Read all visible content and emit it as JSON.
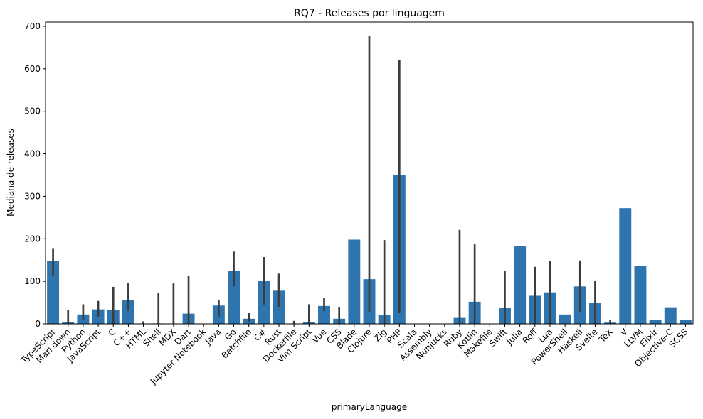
{
  "chart_data": {
    "type": "bar",
    "title": "RQ7 - Releases por linguagem",
    "xlabel": "primaryLanguage",
    "ylabel": "Mediana de releases",
    "ylim": [
      0,
      710
    ],
    "yticks": [
      0,
      100,
      200,
      300,
      400,
      500,
      600,
      700
    ],
    "grid": false,
    "legend": "none",
    "bar_color": "#2e75b0",
    "errorbar_color": "#3d3d3d",
    "categories": [
      "TypeScript",
      "Markdown",
      "Python",
      "JavaScript",
      "C",
      "C++",
      "HTML",
      "Shell",
      "MDX",
      "Dart",
      "Jupyter Notebook",
      "Java",
      "Go",
      "Batchfile",
      "C#",
      "Rust",
      "Dockerfile",
      "Vim Script",
      "Vue",
      "CSS",
      "Blade",
      "Clojure",
      "Zig",
      "PHP",
      "Scala",
      "Assembly",
      "Nunjucks",
      "Ruby",
      "Kotlin",
      "Makefile",
      "Swift",
      "Julia",
      "Roff",
      "Lua",
      "PowerShell",
      "Haskell",
      "Svelte",
      "TeX",
      "V",
      "LLVM",
      "Elixir",
      "Objective-C",
      "SCSS"
    ],
    "values": [
      147,
      5,
      22,
      34,
      33,
      56,
      0,
      1,
      0,
      24,
      0,
      43,
      125,
      12,
      101,
      78,
      0,
      4,
      42,
      12,
      198,
      105,
      21,
      350,
      0,
      0,
      0,
      14,
      52,
      0,
      37,
      182,
      66,
      74,
      22,
      88,
      49,
      3,
      272,
      137,
      10,
      39,
      10
    ],
    "error_low": [
      112,
      0,
      8,
      17,
      0,
      30,
      0,
      0,
      0,
      0,
      0,
      17,
      88,
      5,
      44,
      40,
      0,
      0,
      30,
      0,
      null,
      28,
      0,
      25,
      null,
      null,
      null,
      0,
      0,
      null,
      0,
      null,
      0,
      0,
      null,
      28,
      0,
      0,
      null,
      null,
      null,
      null,
      null
    ],
    "error_high": [
      178,
      33,
      46,
      54,
      87,
      97,
      6,
      72,
      95,
      113,
      0,
      57,
      170,
      25,
      157,
      118,
      7,
      46,
      61,
      40,
      null,
      678,
      197,
      621,
      null,
      null,
      null,
      221,
      187,
      null,
      124,
      null,
      134,
      147,
      null,
      149,
      102,
      9,
      null,
      null,
      null,
      null,
      null
    ]
  }
}
